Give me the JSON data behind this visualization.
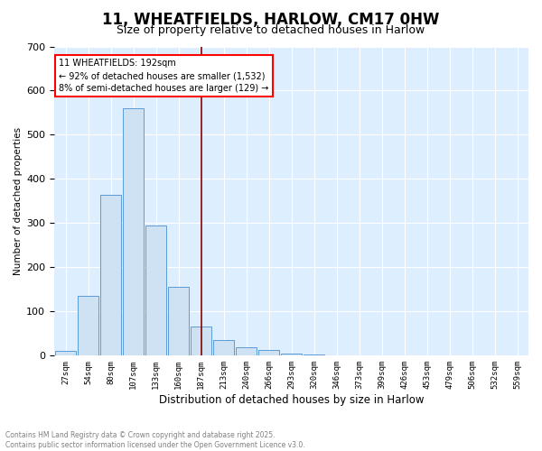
{
  "title": "11, WHEATFIELDS, HARLOW, CM17 0HW",
  "subtitle": "Size of property relative to detached houses in Harlow",
  "xlabel": "Distribution of detached houses by size in Harlow",
  "ylabel": "Number of detached properties",
  "bar_labels": [
    "27sqm",
    "54sqm",
    "80sqm",
    "107sqm",
    "133sqm",
    "160sqm",
    "187sqm",
    "213sqm",
    "240sqm",
    "266sqm",
    "293sqm",
    "320sqm",
    "346sqm",
    "373sqm",
    "399sqm",
    "426sqm",
    "453sqm",
    "479sqm",
    "506sqm",
    "532sqm",
    "559sqm"
  ],
  "bar_values": [
    10,
    135,
    365,
    560,
    295,
    155,
    65,
    35,
    20,
    12,
    5,
    3,
    1,
    0,
    0,
    0,
    0,
    0,
    0,
    0,
    0
  ],
  "bar_color": "#cfe2f3",
  "bar_edge_color": "#5b9bd5",
  "red_line_index": 6,
  "annotation_text": "11 WHEATFIELDS: 192sqm\n← 92% of detached houses are smaller (1,532)\n8% of semi-detached houses are larger (129) →",
  "ylim": [
    0,
    700
  ],
  "yticks": [
    0,
    100,
    200,
    300,
    400,
    500,
    600,
    700
  ],
  "background_color": "#ddeeff",
  "footer_line1": "Contains HM Land Registry data © Crown copyright and database right 2025.",
  "footer_line2": "Contains public sector information licensed under the Open Government Licence v3.0."
}
